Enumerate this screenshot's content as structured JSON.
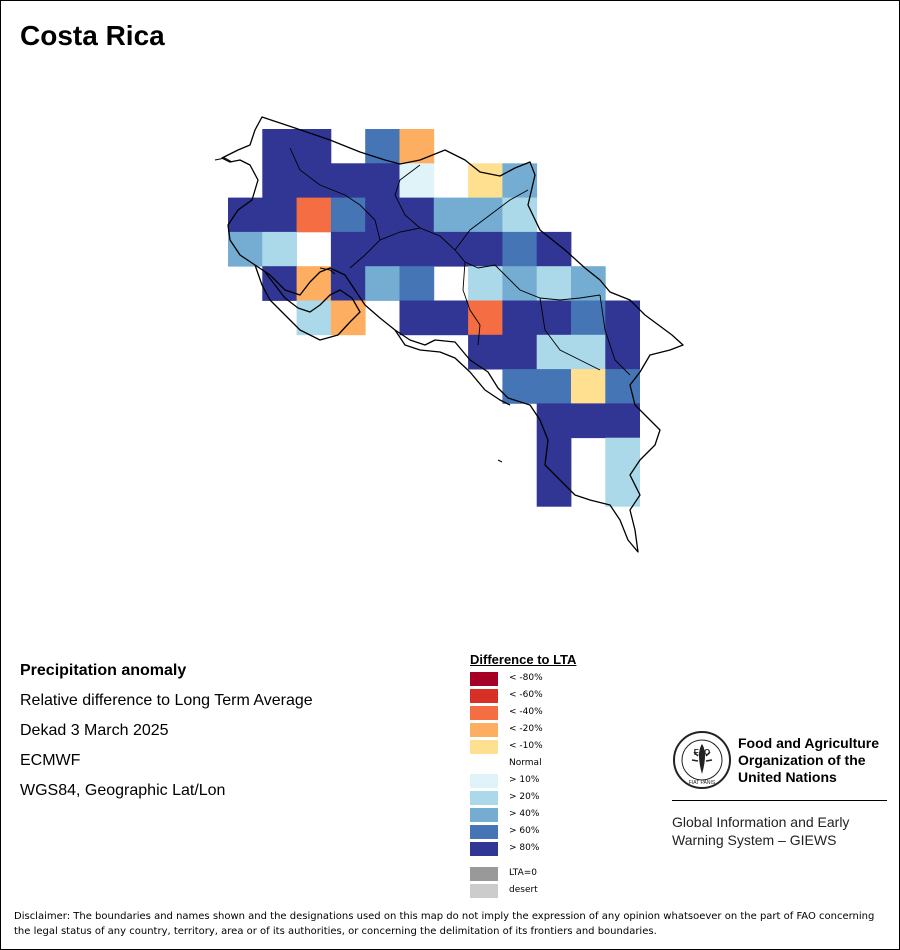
{
  "title": "Costa Rica",
  "info": {
    "heading": "Precipitation anomaly",
    "line1": "Relative difference to Long Term Average",
    "line2": "Dekad 3 March 2025",
    "line3": "ECMWF",
    "line4": "WGS84, Geographic Lat/Lon"
  },
  "legend": {
    "title": "Difference to LTA",
    "items": [
      {
        "label": "< -80%",
        "color": "#a50026"
      },
      {
        "label": "< -60%",
        "color": "#d73027"
      },
      {
        "label": "< -40%",
        "color": "#f46d43"
      },
      {
        "label": "< -20%",
        "color": "#fdae61"
      },
      {
        "label": "< -10%",
        "color": "#fee090"
      },
      {
        "label": "Normal",
        "color": "#ffffff"
      },
      {
        "label": "> 10%",
        "color": "#e0f3f8"
      },
      {
        "label": "> 20%",
        "color": "#abd9e9"
      },
      {
        "label": "> 40%",
        "color": "#74add1"
      },
      {
        "label": "> 60%",
        "color": "#4575b4"
      },
      {
        "label": "> 80%",
        "color": "#313695"
      }
    ],
    "extra": [
      {
        "label": "LTA=0",
        "color": "#999999"
      },
      {
        "label": "desert",
        "color": "#cccccc"
      }
    ]
  },
  "fao": {
    "org_name": "Food and Agriculture Organization of the United Nations",
    "system": "Global Information and Early Warning System – GIEWS",
    "logo_text": "FAO",
    "logo_motto": "FIAT PANIS"
  },
  "disclaimer": "Disclaimer: The boundaries and names shown and the designations used on this map do not imply the expression of any opinion whatsoever on the part of FAO concerning the legal status of any country, territory, area or of its authorities, or concerning the delimitation of its frontiers and boundaries.",
  "grid": {
    "rows": [
      {
        "r": 0,
        "cells": [
          [
            1,
            "p80"
          ],
          [
            2,
            "p80"
          ],
          [
            4,
            "p60"
          ],
          [
            5,
            "m20"
          ]
        ]
      },
      {
        "r": 1,
        "cells": [
          [
            1,
            "p80"
          ],
          [
            2,
            "p80"
          ],
          [
            3,
            "p80"
          ],
          [
            4,
            "p80"
          ],
          [
            5,
            "p10"
          ],
          [
            7,
            "m10"
          ],
          [
            8,
            "p40"
          ]
        ]
      },
      {
        "r": 2,
        "cells": [
          [
            0,
            "p80"
          ],
          [
            1,
            "p80"
          ],
          [
            2,
            "m40"
          ],
          [
            3,
            "p60"
          ],
          [
            4,
            "p80"
          ],
          [
            5,
            "p80"
          ],
          [
            6,
            "p40"
          ],
          [
            7,
            "p40"
          ],
          [
            8,
            "p20"
          ]
        ]
      },
      {
        "r": 3,
        "cells": [
          [
            0,
            "p40"
          ],
          [
            1,
            "p20"
          ],
          [
            3,
            "p80"
          ],
          [
            4,
            "p80"
          ],
          [
            5,
            "p80"
          ],
          [
            6,
            "p80"
          ],
          [
            7,
            "p80"
          ],
          [
            8,
            "p60"
          ],
          [
            9,
            "p80"
          ]
        ]
      },
      {
        "r": 4,
        "cells": [
          [
            1,
            "p80"
          ],
          [
            2,
            "m20"
          ],
          [
            3,
            "p80"
          ],
          [
            4,
            "p40"
          ],
          [
            5,
            "p60"
          ],
          [
            7,
            "p20"
          ],
          [
            8,
            "p40"
          ],
          [
            9,
            "p20"
          ],
          [
            10,
            "p40"
          ]
        ]
      },
      {
        "r": 5,
        "cells": [
          [
            2,
            "p20"
          ],
          [
            3,
            "m20"
          ],
          [
            5,
            "p80"
          ],
          [
            6,
            "p80"
          ],
          [
            7,
            "m40"
          ],
          [
            8,
            "p80"
          ],
          [
            9,
            "p80"
          ],
          [
            10,
            "p60"
          ],
          [
            11,
            "p80"
          ]
        ]
      },
      {
        "r": 6,
        "cells": [
          [
            7,
            "p80"
          ],
          [
            8,
            "p80"
          ],
          [
            9,
            "p20"
          ],
          [
            10,
            "p20"
          ],
          [
            11,
            "p80"
          ]
        ]
      },
      {
        "r": 7,
        "cells": [
          [
            8,
            "p60"
          ],
          [
            9,
            "p60"
          ],
          [
            10,
            "m10"
          ],
          [
            11,
            "p60"
          ]
        ]
      },
      {
        "r": 8,
        "cells": [
          [
            9,
            "p80"
          ],
          [
            10,
            "p80"
          ],
          [
            11,
            "p80"
          ]
        ]
      },
      {
        "r": 9,
        "cells": [
          [
            9,
            "p80"
          ],
          [
            11,
            "p20"
          ]
        ]
      },
      {
        "r": 10,
        "cells": [
          [
            9,
            "p80"
          ],
          [
            11,
            "p20"
          ]
        ]
      }
    ],
    "class_colors": {
      "m40": "#f46d43",
      "m20": "#fdae61",
      "m10": "#fee090",
      "p10": "#e0f3f8",
      "p20": "#abd9e9",
      "p40": "#74add1",
      "p60": "#4575b4",
      "p80": "#313695"
    }
  }
}
